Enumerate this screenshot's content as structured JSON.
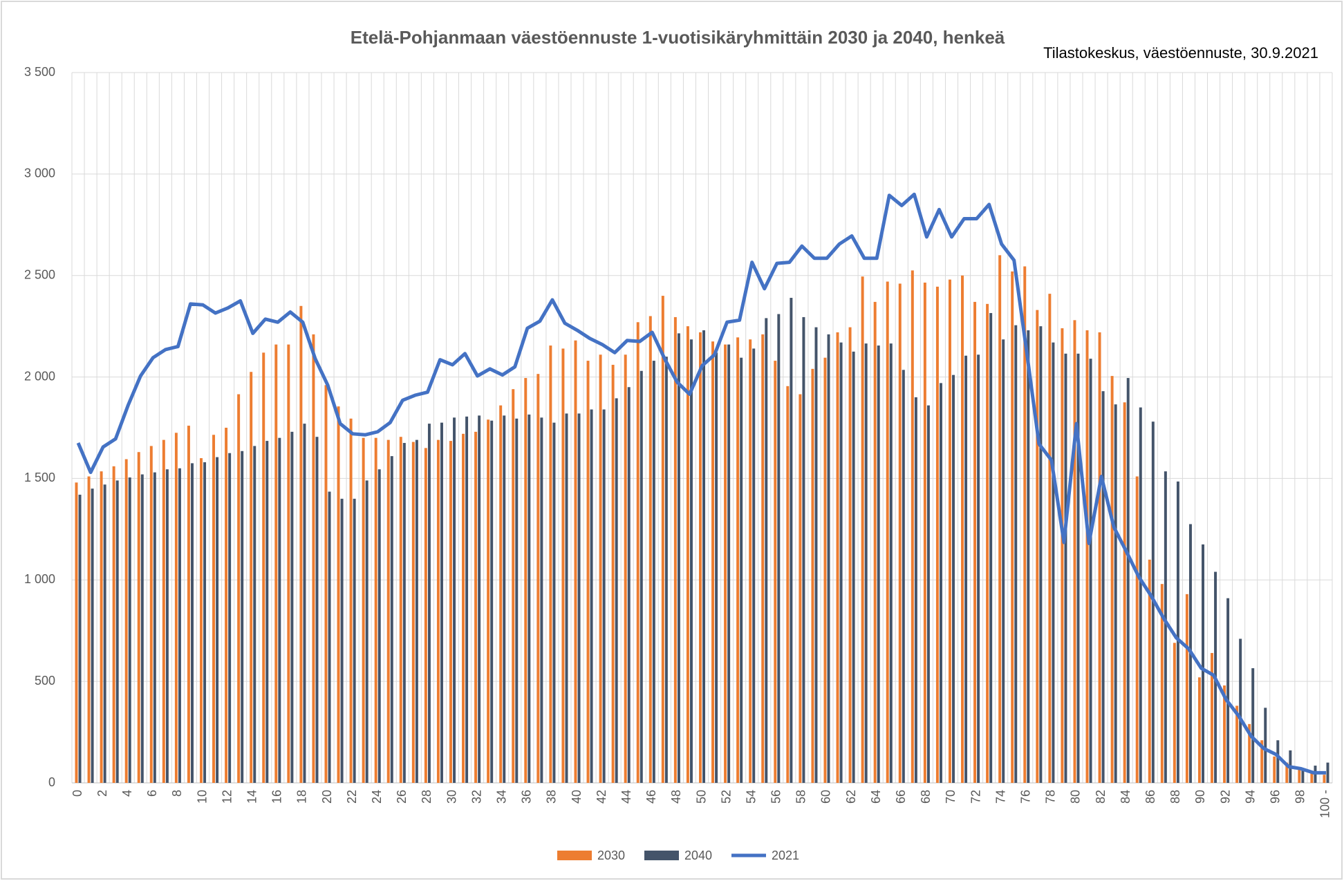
{
  "chart_data": {
    "type": "bar",
    "title": "Etelä-Pohjanmaan väestöennuste 1-vuotisikäryhmittäin 2030 ja 2040, henkeä",
    "subtitle": "Tilastokeskus, väestöennuste, 30.9.2021",
    "categories": [
      "0",
      null,
      "2",
      null,
      "4",
      null,
      "6",
      null,
      "8",
      null,
      "10",
      null,
      "12",
      null,
      "14",
      null,
      "16",
      null,
      "18",
      null,
      "20",
      null,
      "22",
      null,
      "24",
      null,
      "26",
      null,
      "28",
      null,
      "30",
      null,
      "32",
      null,
      "34",
      null,
      "36",
      null,
      "38",
      null,
      "40",
      null,
      "42",
      null,
      "44",
      null,
      "46",
      null,
      "48",
      null,
      "50",
      null,
      "52",
      null,
      "54",
      null,
      "56",
      null,
      "58",
      null,
      "60",
      null,
      "62",
      null,
      "64",
      null,
      "66",
      null,
      "68",
      null,
      "70",
      null,
      "72",
      null,
      "74",
      null,
      "76",
      null,
      "78",
      null,
      "80",
      null,
      "82",
      null,
      "84",
      null,
      "86",
      null,
      "88",
      null,
      "90",
      null,
      "92",
      null,
      "94",
      null,
      "96",
      null,
      "98",
      null,
      "100 -"
    ],
    "series": [
      {
        "name": "2030",
        "type": "bar",
        "color": "#ED7D31",
        "values": [
          1480,
          1510,
          1535,
          1560,
          1595,
          1630,
          1660,
          1690,
          1725,
          1760,
          1600,
          1715,
          1750,
          1915,
          2025,
          2120,
          2160,
          2160,
          2350,
          2210,
          1960,
          1855,
          1795,
          1700,
          1700,
          1690,
          1705,
          1680,
          1650,
          1690,
          1685,
          1720,
          1730,
          1790,
          1860,
          1940,
          1995,
          2015,
          2155,
          2140,
          2180,
          2080,
          2110,
          2060,
          2110,
          2270,
          2300,
          2400,
          2295,
          2250,
          2220,
          2175,
          2160,
          2195,
          2185,
          2210,
          2080,
          1955,
          1915,
          2040,
          2095,
          2220,
          2245,
          2495,
          2370,
          2470,
          2460,
          2525,
          2465,
          2445,
          2480,
          2500,
          2370,
          2360,
          2600,
          2520,
          2545,
          2330,
          2410,
          2240,
          2280,
          2230,
          2220,
          2005,
          1875,
          1510,
          1100,
          980,
          690,
          930,
          520,
          640,
          480,
          380,
          290,
          210,
          130,
          100,
          75,
          60,
          40
        ]
      },
      {
        "name": "2040",
        "type": "bar",
        "color": "#44546A",
        "values": [
          1420,
          1450,
          1470,
          1490,
          1505,
          1520,
          1530,
          1545,
          1550,
          1575,
          1580,
          1605,
          1625,
          1635,
          1660,
          1685,
          1700,
          1730,
          1770,
          1705,
          1435,
          1400,
          1400,
          1490,
          1545,
          1610,
          1675,
          1690,
          1770,
          1775,
          1800,
          1805,
          1810,
          1785,
          1810,
          1795,
          1815,
          1800,
          1775,
          1820,
          1820,
          1840,
          1840,
          1895,
          1950,
          2030,
          2080,
          2100,
          2215,
          2185,
          2230,
          2120,
          2160,
          2095,
          2140,
          2290,
          2310,
          2390,
          2295,
          2245,
          2210,
          2170,
          2125,
          2165,
          2155,
          2165,
          2035,
          1900,
          1860,
          1970,
          2010,
          2105,
          2110,
          2315,
          2185,
          2255,
          2230,
          2250,
          2170,
          2115,
          2115,
          2090,
          1930,
          1865,
          1995,
          1850,
          1780,
          1535,
          1485,
          1275,
          1175,
          1040,
          910,
          710,
          565,
          370,
          210,
          160,
          70,
          85,
          100
        ]
      },
      {
        "name": "2021",
        "type": "line",
        "color": "#4472C4",
        "values": [
          1675,
          1530,
          1655,
          1695,
          1860,
          2005,
          2095,
          2135,
          2150,
          2360,
          2355,
          2315,
          2340,
          2375,
          2215,
          2285,
          2270,
          2320,
          2270,
          2090,
          1960,
          1770,
          1720,
          1715,
          1730,
          1775,
          1885,
          1910,
          1925,
          2085,
          2060,
          2115,
          2005,
          2040,
          2010,
          2050,
          2240,
          2275,
          2380,
          2265,
          2230,
          2190,
          2160,
          2120,
          2180,
          2175,
          2220,
          2090,
          1975,
          1915,
          2055,
          2110,
          2270,
          2280,
          2565,
          2435,
          2560,
          2565,
          2645,
          2585,
          2585,
          2655,
          2695,
          2585,
          2585,
          2895,
          2845,
          2900,
          2690,
          2825,
          2690,
          2780,
          2780,
          2850,
          2655,
          2575,
          2130,
          1670,
          1590,
          1185,
          1770,
          1180,
          1510,
          1260,
          1140,
          1015,
          920,
          810,
          715,
          660,
          565,
          530,
          410,
          330,
          230,
          170,
          140,
          80,
          70,
          50,
          50
        ]
      }
    ],
    "ylim": [
      0,
      3500
    ],
    "yticks": [
      0,
      500,
      {
        "value": 1000,
        "label": "1 000"
      },
      {
        "value": 1500,
        "label": "1 500"
      },
      {
        "value": 2000,
        "label": "2 000"
      },
      {
        "value": 2500,
        "label": "2 500"
      },
      {
        "value": 3000,
        "label": "3 000"
      },
      {
        "value": 3500,
        "label": "3 500"
      }
    ],
    "grid": true,
    "legend": "bottom"
  }
}
